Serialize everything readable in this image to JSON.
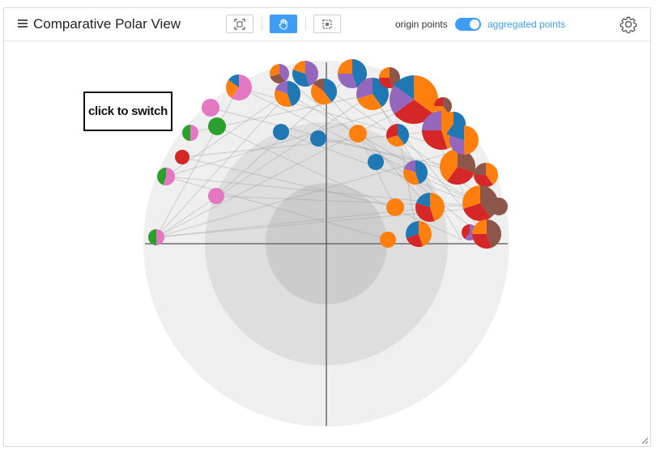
{
  "header": {
    "title": "Comparative Polar View",
    "origin_label": "origin points",
    "aggregated_label": "aggregated points",
    "toggle_on": true
  },
  "tools": [
    {
      "name": "fit-view-button",
      "icon": "fit-view-icon",
      "active": false
    },
    {
      "name": "pan-button",
      "icon": "hand-icon",
      "active": true
    },
    {
      "name": "select-button",
      "icon": "lasso-select-icon",
      "active": false
    }
  ],
  "overlay": {
    "switch_label": "click to switch"
  },
  "colors": {
    "accent": "#3d9df5",
    "blue": "#1f77b4",
    "orange": "#ff7f0e",
    "green": "#2ca02c",
    "red": "#d62728",
    "purple": "#9467bd",
    "brown": "#8c564b",
    "pink": "#e377c2"
  }
}
